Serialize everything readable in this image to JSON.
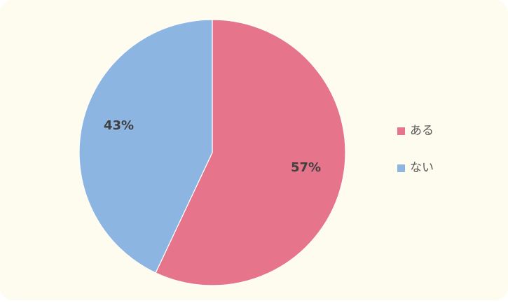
{
  "chart_data": {
    "type": "pie",
    "categories": [
      "ある",
      "ない"
    ],
    "values": [
      57,
      43
    ],
    "value_labels": [
      "57%",
      "43%"
    ],
    "colors": [
      "#e6758b",
      "#8db5e2"
    ],
    "legend": "right"
  }
}
